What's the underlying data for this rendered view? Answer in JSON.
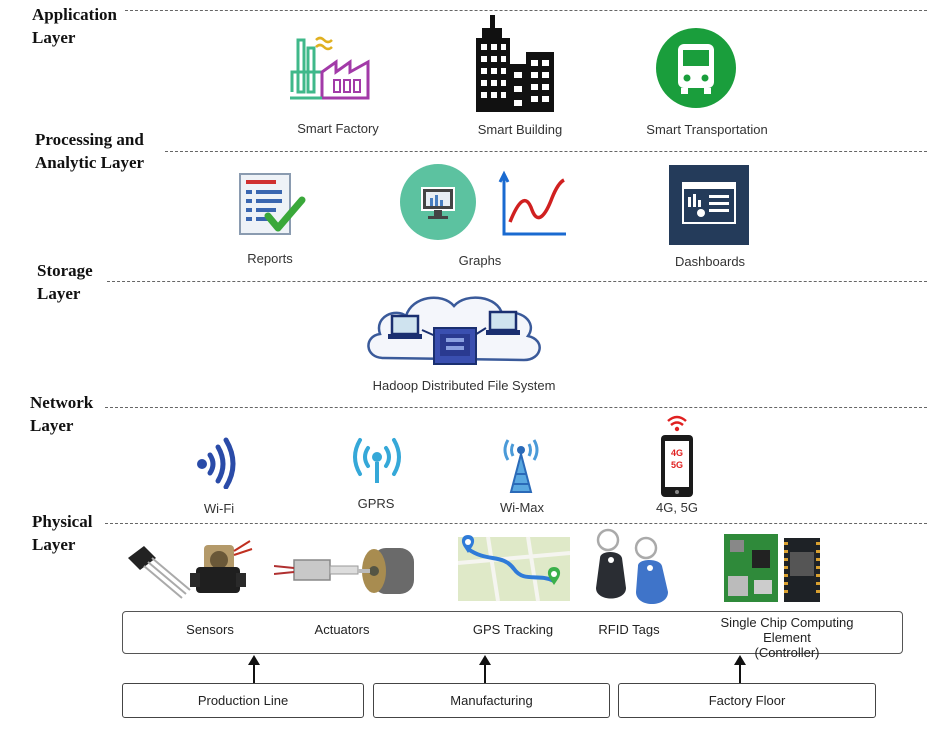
{
  "layers": [
    {
      "id": "application",
      "label": "Application\nLayer"
    },
    {
      "id": "processing",
      "label": "Processing and\nAnalytic Layer"
    },
    {
      "id": "storage",
      "label": "Storage\nLayer"
    },
    {
      "id": "network",
      "label": "Network\nLayer"
    },
    {
      "id": "physical",
      "label": "Physical\nLayer"
    }
  ],
  "application": {
    "items": [
      {
        "label": "Smart Factory",
        "icon": "factory-icon"
      },
      {
        "label": "Smart Building",
        "icon": "building-icon"
      },
      {
        "label": "Smart Transportation",
        "icon": "bus-icon"
      }
    ]
  },
  "processing": {
    "items": [
      {
        "label": "Reports",
        "icon": "report-icon"
      },
      {
        "label": "Graphs",
        "icon": "graph-icon"
      },
      {
        "label": "Dashboards",
        "icon": "dashboard-icon"
      }
    ]
  },
  "storage": {
    "label": "Hadoop Distributed File System",
    "icon": "cloud-servers-icon"
  },
  "network": {
    "items": [
      {
        "label": "Wi-Fi",
        "icon": "wifi-icon"
      },
      {
        "label": "GPRS",
        "icon": "gprs-icon"
      },
      {
        "label": "Wi-Max",
        "icon": "wimax-tower-icon"
      },
      {
        "label": "4G, 5G",
        "icon": "phone-4g-5g-icon",
        "screen_top": "4G",
        "screen_bottom": "5G"
      }
    ]
  },
  "physical": {
    "devices": [
      "Sensors",
      "Actuators",
      "GPS Tracking",
      "RFID Tags",
      "Single Chip Computing Element\n(Controller)"
    ],
    "sources": [
      "Production Line",
      "Manufacturing",
      "Factory Floor"
    ]
  },
  "colors": {
    "factory_green": "#3fb88a",
    "factory_purple": "#a23aa8",
    "bus_green": "#1a9e3c",
    "graph_circle": "#5cc2a0",
    "dashboard_navy": "#243b5a",
    "wifi_blue": "#2a4ba8",
    "gprs_blue": "#35a8d8",
    "rfid_blue": "#3f74c9"
  }
}
